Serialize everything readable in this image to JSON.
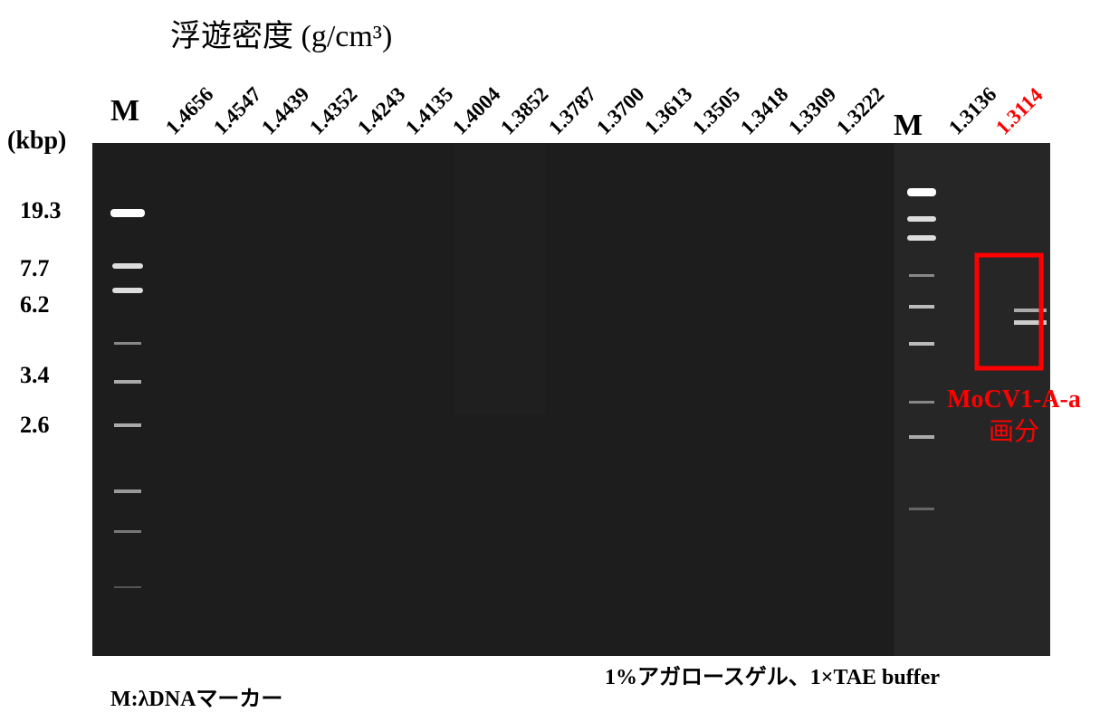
{
  "title": "浮遊密度 (g/cm³)",
  "unit_label": "(kbp)",
  "size_labels": [
    "19.3",
    "7.7",
    "6.2",
    "3.4",
    "2.6"
  ],
  "marker_label_left": "M",
  "marker_label_right": "M",
  "lane_labels": [
    "1.4656",
    "1.4547",
    "1.4439",
    "1.4352",
    "1.4243",
    "1.4135",
    "1.4004",
    "1.3852",
    "1.3787",
    "1.3700",
    "1.3613",
    "1.3505",
    "1.3418",
    "1.3309",
    "1.3222"
  ],
  "right_lane_labels": [
    "1.3136",
    "1.3114"
  ],
  "annotation": {
    "line1": "MoCV1-A-a",
    "line2": "画分"
  },
  "footer_left": "M:λDNAマーカー",
  "footer_right": "1%アガロースゲル、1×TAE buffer"
}
